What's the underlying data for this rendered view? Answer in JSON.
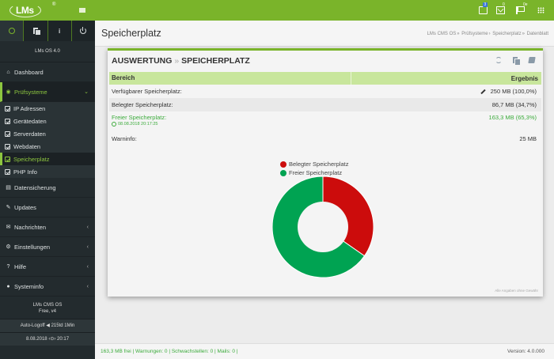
{
  "topbar": {
    "logo_text": "LMs",
    "logo_reg": "®",
    "badges": {
      "notes": "3",
      "mail": "0",
      "flags": "0e"
    },
    "colors": {
      "bar": "#7ab42a"
    }
  },
  "sidebar": {
    "os_label": "LMs OS 4.0",
    "items": [
      {
        "label": "Dashboard",
        "icon": "home-icon"
      },
      {
        "label": "Prüfsysteme",
        "icon": "eye-icon",
        "active": true
      },
      {
        "label": "Datensicherung",
        "icon": "database-icon"
      },
      {
        "label": "Updates",
        "icon": "wrench-icon"
      },
      {
        "label": "Nachrichten",
        "icon": "envelope-icon"
      },
      {
        "label": "Einstellungen",
        "icon": "cogs-icon"
      },
      {
        "label": "Hilfe",
        "icon": "question-icon"
      },
      {
        "label": "Systeminfo",
        "icon": "info-icon"
      }
    ],
    "subitems": [
      {
        "label": "IP Adressen"
      },
      {
        "label": "Gerätedaten"
      },
      {
        "label": "Serverdaten"
      },
      {
        "label": "Webdaten"
      },
      {
        "label": "Speicherplatz",
        "active": true
      },
      {
        "label": "PHP Info"
      }
    ],
    "footer": {
      "line1": "LMs CMS OS",
      "line2": "Free, v4",
      "autologoff": "Auto-Logoff ◀ 215td 1Min",
      "date": "8.08.2018",
      "time": "20:17"
    }
  },
  "header": {
    "title": "Speicherplatz",
    "breadcrumb": [
      "LMs CMS OS",
      "Prüfsysteme",
      "Speicherplatz",
      "Datenblatt"
    ]
  },
  "panel": {
    "title_part1": "AUSWERTUNG",
    "title_sep": "»",
    "title_part2": "SPEICHERPLATZ",
    "table": {
      "headers": [
        "Bereich",
        "Ergebnis"
      ],
      "rows": [
        {
          "label": "Verfügbarer Speicherplatz:",
          "value": "250 MB (100,0%)"
        },
        {
          "label": "Belegter Speicherplatz:",
          "value": "86,7 MB (34,7%)"
        },
        {
          "label": "Freier Speicherplatz:",
          "value": "163,3 MB (65,3%)",
          "timestamp": "08.08.2018 20:17:25"
        },
        {
          "label": "Warninfo:",
          "value": "25 MB"
        }
      ]
    },
    "legend": [
      {
        "label": "Belegter Speicherplatz",
        "color": "#cc0c0c"
      },
      {
        "label": "Freier Speicherplatz",
        "color": "#00a352"
      }
    ],
    "disclaimer": "Alle Angaben ohne Gewähr"
  },
  "chart_data": {
    "type": "pie",
    "categories": [
      "Belegter Speicherplatz",
      "Freier Speicherplatz"
    ],
    "values": [
      34.7,
      65.3
    ],
    "colors": [
      "#cc0c0c",
      "#00a352"
    ],
    "title": "",
    "donut": true,
    "legend_position": "top"
  },
  "footer": {
    "status": "163,3 MB frei | Warnungen: 0 | Schwachstellen: 0 | Mails: 0 |",
    "version": "Version: 4.0.000"
  }
}
